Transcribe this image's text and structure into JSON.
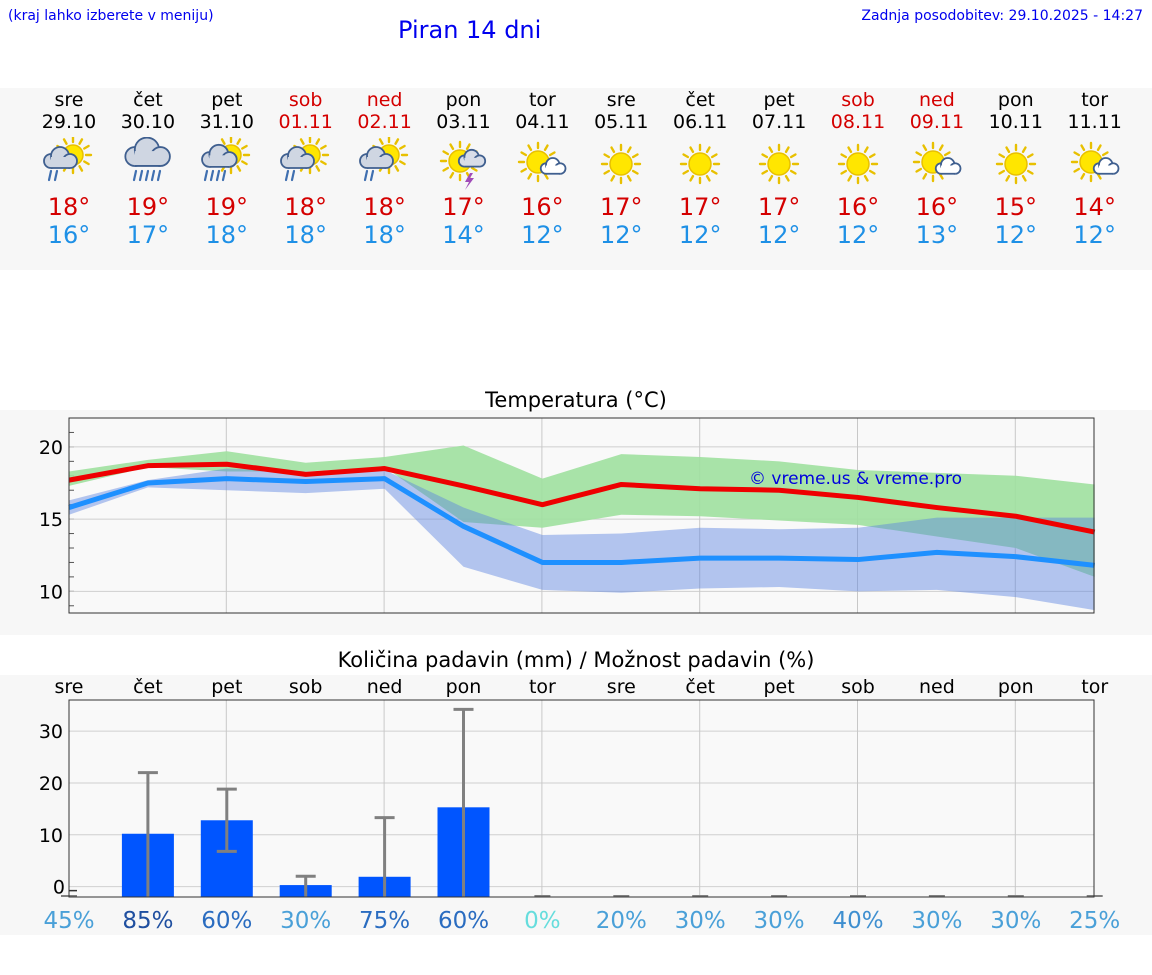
{
  "header": {
    "menu_hint": "(kraj lahko izberete v meniju)",
    "title": "Piran 14 dni",
    "last_update": "Zadnja posodobitev: 29.10.2025 - 14:27"
  },
  "days": [
    {
      "name": "sre",
      "date": "29.10",
      "weekend": false,
      "icon": "sun-cloud-rain-icon",
      "tmax": "18°",
      "tmin": "16°"
    },
    {
      "name": "čet",
      "date": "30.10",
      "weekend": false,
      "icon": "heavy-rain-cloud-icon",
      "tmax": "19°",
      "tmin": "17°"
    },
    {
      "name": "pet",
      "date": "31.10",
      "weekend": false,
      "icon": "sun-cloud-heavy-rain-icon",
      "tmax": "19°",
      "tmin": "18°"
    },
    {
      "name": "sob",
      "date": "01.11",
      "weekend": true,
      "icon": "sun-cloud-rain-icon",
      "tmax": "18°",
      "tmin": "18°"
    },
    {
      "name": "ned",
      "date": "02.11",
      "weekend": true,
      "icon": "sun-cloud-rain-icon",
      "tmax": "18°",
      "tmin": "18°"
    },
    {
      "name": "pon",
      "date": "03.11",
      "weekend": false,
      "icon": "sun-lightning-icon",
      "tmax": "17°",
      "tmin": "14°"
    },
    {
      "name": "tor",
      "date": "04.11",
      "weekend": false,
      "icon": "sun-small-cloud-icon",
      "tmax": "16°",
      "tmin": "12°"
    },
    {
      "name": "sre",
      "date": "05.11",
      "weekend": false,
      "icon": "sun-icon",
      "tmax": "17°",
      "tmin": "12°"
    },
    {
      "name": "čet",
      "date": "06.11",
      "weekend": false,
      "icon": "sun-icon",
      "tmax": "17°",
      "tmin": "12°"
    },
    {
      "name": "pet",
      "date": "07.11",
      "weekend": false,
      "icon": "sun-icon",
      "tmax": "17°",
      "tmin": "12°"
    },
    {
      "name": "sob",
      "date": "08.11",
      "weekend": true,
      "icon": "sun-icon",
      "tmax": "16°",
      "tmin": "12°"
    },
    {
      "name": "ned",
      "date": "09.11",
      "weekend": true,
      "icon": "sun-small-cloud-icon",
      "tmax": "16°",
      "tmin": "13°"
    },
    {
      "name": "pon",
      "date": "10.11",
      "weekend": false,
      "icon": "sun-icon",
      "tmax": "15°",
      "tmin": "12°"
    },
    {
      "name": "tor",
      "date": "11.11",
      "weekend": false,
      "icon": "sun-small-cloud-icon",
      "tmax": "14°",
      "tmin": "12°"
    }
  ],
  "colors": {
    "max_line": "#ee0000",
    "min_line": "#1e90ff",
    "max_band": "#9fe09f",
    "min_band": "#a6bff0",
    "overlap_band": "#76bba6",
    "bar": "#0055ff",
    "whisker": "#808080"
  },
  "chart_data": [
    {
      "type": "line",
      "title": "Temperatura (°C)",
      "watermark": "© vreme.us & vreme.pro",
      "ylim": [
        8.5,
        22
      ],
      "yticks": [
        10,
        15,
        20
      ],
      "series": [
        {
          "name": "max",
          "values": [
            17.7,
            18.7,
            18.8,
            18.1,
            18.5,
            17.3,
            16.0,
            17.4,
            17.1,
            17.0,
            16.5,
            15.8,
            15.2,
            14.1
          ],
          "band_low": [
            17.3,
            18.6,
            18.3,
            18.3,
            18.6,
            14.8,
            14.4,
            15.3,
            15.2,
            14.9,
            14.6,
            13.8,
            13.0,
            11.0
          ],
          "band_high": [
            18.3,
            19.1,
            19.7,
            18.9,
            19.3,
            20.1,
            17.8,
            19.5,
            19.3,
            19.0,
            18.4,
            18.2,
            18.0,
            17.4
          ]
        },
        {
          "name": "min",
          "values": [
            15.8,
            17.5,
            17.8,
            17.6,
            17.8,
            14.5,
            12.0,
            12.0,
            12.3,
            12.3,
            12.2,
            12.7,
            12.4,
            11.8
          ],
          "band_low": [
            15.3,
            17.2,
            17.0,
            16.8,
            17.1,
            11.7,
            10.1,
            9.9,
            10.2,
            10.3,
            10.0,
            10.1,
            9.6,
            8.7
          ],
          "band_high": [
            16.3,
            17.7,
            18.5,
            18.3,
            18.4,
            15.8,
            13.9,
            14.0,
            14.4,
            14.3,
            14.4,
            15.1,
            15.1,
            15.1
          ]
        }
      ]
    },
    {
      "type": "bar",
      "title": "Količina padavin (mm) / Možnost padavin (%)",
      "categories": [
        "sre",
        "čet",
        "pet",
        "sob",
        "ned",
        "pon",
        "tor",
        "sre",
        "čet",
        "pet",
        "sob",
        "ned",
        "pon",
        "tor"
      ],
      "values": [
        0,
        10.2,
        12.8,
        0.3,
        1.9,
        15.3,
        0,
        0,
        0,
        0,
        0,
        0,
        0,
        0
      ],
      "err_low": [
        0,
        0,
        6.8,
        0,
        0,
        0,
        0,
        0,
        0,
        0,
        0,
        0,
        0,
        0
      ],
      "err_high": [
        0,
        22.0,
        18.8,
        2.0,
        13.3,
        34.2,
        0,
        0,
        0,
        0,
        0,
        0,
        0,
        0
      ],
      "ylim": [
        -2,
        36
      ],
      "yticks": [
        0,
        10,
        20,
        30
      ],
      "probability": [
        "45%",
        "85%",
        "60%",
        "30%",
        "75%",
        "60%",
        "0%",
        "20%",
        "30%",
        "30%",
        "40%",
        "30%",
        "30%",
        "25%"
      ],
      "probability_colors": [
        "#4aa0d8",
        "#1f4fa0",
        "#2a6cc0",
        "#4aa0d8",
        "#2a6cc0",
        "#2a6cc0",
        "#66dddd",
        "#4aa0d8",
        "#4aa0d8",
        "#4aa0d8",
        "#3f8fd0",
        "#4aa0d8",
        "#4aa0d8",
        "#4aa0d8"
      ]
    }
  ]
}
